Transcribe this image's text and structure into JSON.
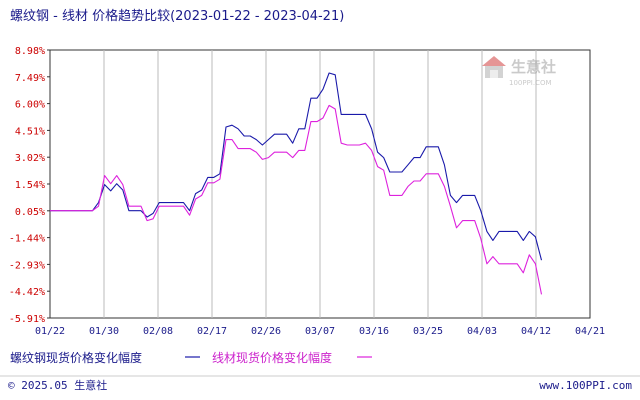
{
  "title": "螺纹钢 - 线材 价格趋势比较(2023-01-22 - 2023-04-21)",
  "watermark": {
    "main": "生意社",
    "sub": "100PPI.COM"
  },
  "footer": {
    "left": "© 2025.05 生意社",
    "right": "www.100PPI.com"
  },
  "colors": {
    "series1": "#1a1aaa",
    "series2": "#dd22dd",
    "axis": "#333333",
    "grid": "#bbbbbb",
    "ytick": "#cc0000",
    "text": "#1a1a8a",
    "background": "#ffffff"
  },
  "chart_data": {
    "type": "line",
    "title": "螺纹钢 - 线材 价格趋势比较(2023-01-22 - 2023-04-21)",
    "xlabel": "",
    "ylabel": "",
    "x_ticks": [
      "01/22",
      "01/30",
      "02/08",
      "02/17",
      "02/26",
      "03/07",
      "03/16",
      "03/25",
      "04/03",
      "04/12",
      "04/21"
    ],
    "y_ticks": [
      "8.98%",
      "7.49%",
      "6.00%",
      "4.51%",
      "3.02%",
      "1.54%",
      "0.05%",
      "-1.44%",
      "-2.93%",
      "-4.42%",
      "-5.91%"
    ],
    "ylim": [
      -5.91,
      8.98
    ],
    "x_range_days": [
      0,
      89
    ],
    "grid": "vertical",
    "legend_position": "bottom",
    "series": [
      {
        "name": "螺纹钢现货价格变化幅度",
        "color": "#1a1aaa",
        "points": [
          [
            0,
            0.05
          ],
          [
            4,
            0.05
          ],
          [
            5,
            0.05
          ],
          [
            6,
            0.05
          ],
          [
            7,
            0.05
          ],
          [
            8,
            0.5
          ],
          [
            9,
            1.5
          ],
          [
            10,
            1.15
          ],
          [
            11,
            1.55
          ],
          [
            12,
            1.2
          ],
          [
            13,
            0.05
          ],
          [
            14,
            0.05
          ],
          [
            15,
            0.05
          ],
          [
            16,
            -0.3
          ],
          [
            17,
            -0.1
          ],
          [
            18,
            0.5
          ],
          [
            19,
            0.5
          ],
          [
            20,
            0.5
          ],
          [
            21,
            0.5
          ],
          [
            22,
            0.5
          ],
          [
            23,
            0.05
          ],
          [
            24,
            1.0
          ],
          [
            25,
            1.2
          ],
          [
            26,
            1.9
          ],
          [
            27,
            1.9
          ],
          [
            28,
            2.1
          ],
          [
            29,
            4.7
          ],
          [
            30,
            4.8
          ],
          [
            31,
            4.6
          ],
          [
            32,
            4.2
          ],
          [
            33,
            4.2
          ],
          [
            34,
            4.0
          ],
          [
            35,
            3.7
          ],
          [
            36,
            4.0
          ],
          [
            37,
            4.3
          ],
          [
            38,
            4.3
          ],
          [
            39,
            4.3
          ],
          [
            40,
            3.8
          ],
          [
            41,
            4.6
          ],
          [
            42,
            4.6
          ],
          [
            43,
            6.3
          ],
          [
            44,
            6.3
          ],
          [
            45,
            6.8
          ],
          [
            46,
            7.7
          ],
          [
            47,
            7.6
          ],
          [
            48,
            5.4
          ],
          [
            49,
            5.4
          ],
          [
            50,
            5.4
          ],
          [
            51,
            5.4
          ],
          [
            52,
            5.4
          ],
          [
            53,
            4.6
          ],
          [
            54,
            3.3
          ],
          [
            55,
            3.0
          ],
          [
            56,
            2.2
          ],
          [
            57,
            2.2
          ],
          [
            58,
            2.2
          ],
          [
            59,
            2.6
          ],
          [
            60,
            3.0
          ],
          [
            61,
            3.0
          ],
          [
            62,
            3.6
          ],
          [
            63,
            3.6
          ],
          [
            64,
            3.6
          ],
          [
            65,
            2.6
          ],
          [
            66,
            0.9
          ],
          [
            67,
            0.5
          ],
          [
            68,
            0.9
          ],
          [
            69,
            0.9
          ],
          [
            70,
            0.9
          ],
          [
            71,
            0.05
          ],
          [
            72,
            -1.1
          ],
          [
            73,
            -1.6
          ],
          [
            74,
            -1.1
          ],
          [
            75,
            -1.1
          ],
          [
            76,
            -1.1
          ],
          [
            77,
            -1.1
          ],
          [
            78,
            -1.6
          ],
          [
            79,
            -1.1
          ],
          [
            80,
            -1.4
          ],
          [
            81,
            -2.7
          ]
        ]
      },
      {
        "name": "线材现货价格变化幅度",
        "color": "#dd22dd",
        "points": [
          [
            0,
            0.05
          ],
          [
            4,
            0.05
          ],
          [
            5,
            0.05
          ],
          [
            6,
            0.05
          ],
          [
            7,
            0.05
          ],
          [
            8,
            0.3
          ],
          [
            9,
            2.0
          ],
          [
            10,
            1.55
          ],
          [
            11,
            2.0
          ],
          [
            12,
            1.5
          ],
          [
            13,
            0.3
          ],
          [
            14,
            0.3
          ],
          [
            15,
            0.3
          ],
          [
            16,
            -0.5
          ],
          [
            17,
            -0.4
          ],
          [
            18,
            0.3
          ],
          [
            19,
            0.3
          ],
          [
            20,
            0.3
          ],
          [
            21,
            0.3
          ],
          [
            22,
            0.3
          ],
          [
            23,
            -0.2
          ],
          [
            24,
            0.7
          ],
          [
            25,
            0.9
          ],
          [
            26,
            1.6
          ],
          [
            27,
            1.6
          ],
          [
            28,
            1.8
          ],
          [
            29,
            4.0
          ],
          [
            30,
            4.0
          ],
          [
            31,
            3.5
          ],
          [
            32,
            3.5
          ],
          [
            33,
            3.5
          ],
          [
            34,
            3.3
          ],
          [
            35,
            2.9
          ],
          [
            36,
            3.0
          ],
          [
            37,
            3.3
          ],
          [
            38,
            3.3
          ],
          [
            39,
            3.3
          ],
          [
            40,
            3.0
          ],
          [
            41,
            3.4
          ],
          [
            42,
            3.4
          ],
          [
            43,
            5.0
          ],
          [
            44,
            5.0
          ],
          [
            45,
            5.2
          ],
          [
            46,
            5.9
          ],
          [
            47,
            5.7
          ],
          [
            48,
            3.8
          ],
          [
            49,
            3.7
          ],
          [
            50,
            3.7
          ],
          [
            51,
            3.7
          ],
          [
            52,
            3.8
          ],
          [
            53,
            3.4
          ],
          [
            54,
            2.5
          ],
          [
            55,
            2.3
          ],
          [
            56,
            0.9
          ],
          [
            57,
            0.9
          ],
          [
            58,
            0.9
          ],
          [
            59,
            1.4
          ],
          [
            60,
            1.7
          ],
          [
            61,
            1.7
          ],
          [
            62,
            2.1
          ],
          [
            63,
            2.1
          ],
          [
            64,
            2.1
          ],
          [
            65,
            1.4
          ],
          [
            66,
            0.3
          ],
          [
            67,
            -0.9
          ],
          [
            68,
            -0.5
          ],
          [
            69,
            -0.5
          ],
          [
            70,
            -0.5
          ],
          [
            71,
            -1.5
          ],
          [
            72,
            -2.9
          ],
          [
            73,
            -2.5
          ],
          [
            74,
            -2.9
          ],
          [
            75,
            -2.9
          ],
          [
            76,
            -2.9
          ],
          [
            77,
            -2.9
          ],
          [
            78,
            -3.4
          ],
          [
            79,
            -2.4
          ],
          [
            80,
            -2.9
          ],
          [
            81,
            -4.6
          ]
        ]
      }
    ]
  }
}
